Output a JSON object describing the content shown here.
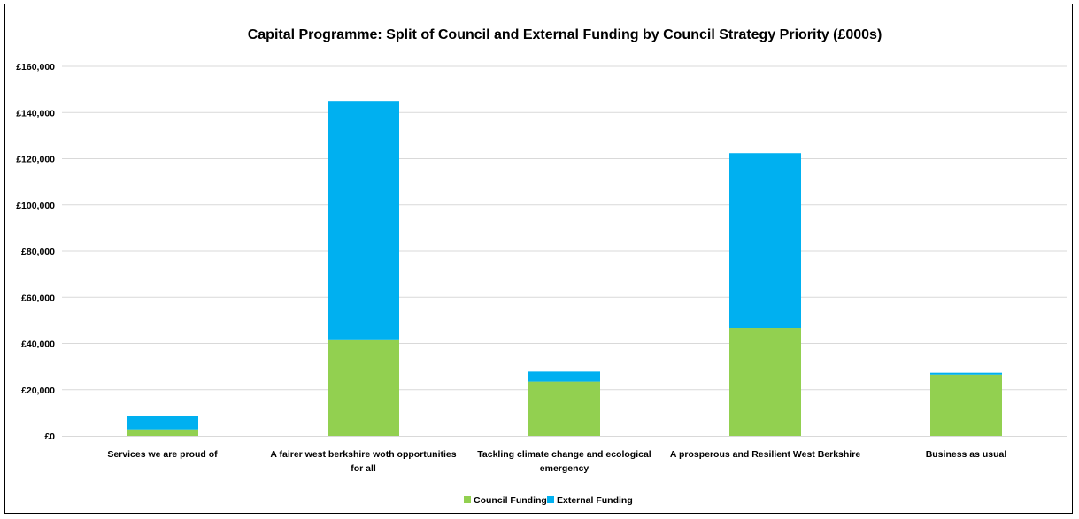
{
  "chart_data": {
    "type": "bar",
    "stacked": true,
    "title": "Capital Programme: Split of Council and External Funding by Council Strategy Priority (£000s)",
    "xlabel": "",
    "ylabel": "",
    "ylim": [
      0,
      160000
    ],
    "yticks": [
      0,
      20000,
      40000,
      60000,
      80000,
      100000,
      120000,
      140000,
      160000
    ],
    "ytick_labels": [
      "£0",
      "£20,000",
      "£40,000",
      "£60,000",
      "£80,000",
      "£100,000",
      "£120,000",
      "£140,000",
      "£160,000"
    ],
    "grid": true,
    "legend_position": "bottom",
    "categories": [
      [
        "Services we are proud of"
      ],
      [
        "A fairer west berkshire woth opportunities",
        "for all"
      ],
      [
        "Tackling climate change and ecological",
        "emergency"
      ],
      [
        "A prosperous and Resilient West Berkshire"
      ],
      [
        "Business as usual"
      ]
    ],
    "series": [
      {
        "name": "Council Funding",
        "color": "#92d050",
        "values": [
          2800,
          41800,
          23500,
          46700,
          26500
        ]
      },
      {
        "name": "External Funding",
        "color": "#00b0f0",
        "values": [
          5700,
          103200,
          4300,
          75700,
          800
        ]
      }
    ]
  }
}
